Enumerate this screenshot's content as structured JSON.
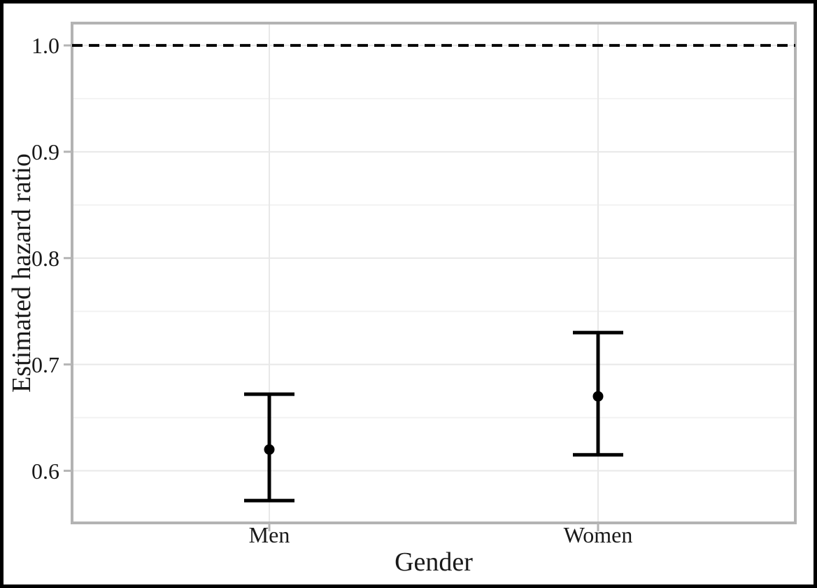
{
  "figure": {
    "background_color": "#ffffff",
    "border_color": "#000000"
  },
  "chart_data": {
    "type": "errorbar",
    "title": "",
    "xlabel": "Gender",
    "ylabel": "Estimated hazard ratio",
    "categories": [
      "Men",
      "Women"
    ],
    "series": [
      {
        "name": "estimated-hazard-ratio",
        "points": [
          {
            "category": "Men",
            "value": 0.62,
            "ci_low": 0.572,
            "ci_high": 0.672
          },
          {
            "category": "Women",
            "value": 0.67,
            "ci_low": 0.615,
            "ci_high": 0.73
          }
        ]
      }
    ],
    "reference_line": {
      "value": 1.0,
      "style": "dashed",
      "color": "#000000"
    },
    "ylim": [
      0.551,
      1.021
    ],
    "yticks": [
      0.6,
      0.7,
      0.8,
      0.9,
      1.0
    ],
    "ytick_labels": [
      "0.6",
      "0.7",
      "0.8",
      "0.9",
      "1.0"
    ],
    "minor_yticks": [
      0.65,
      0.75,
      0.85,
      0.95
    ],
    "grid": true,
    "legend": false,
    "colors": {
      "errorbar": "#000000",
      "text": "#191919",
      "grid_major": "#e8e8e8",
      "grid_minor": "#f2f2f2",
      "panel_border": "#b3b3b3",
      "tick": "#b5b5b5",
      "panel_background": "#ffffff"
    }
  }
}
